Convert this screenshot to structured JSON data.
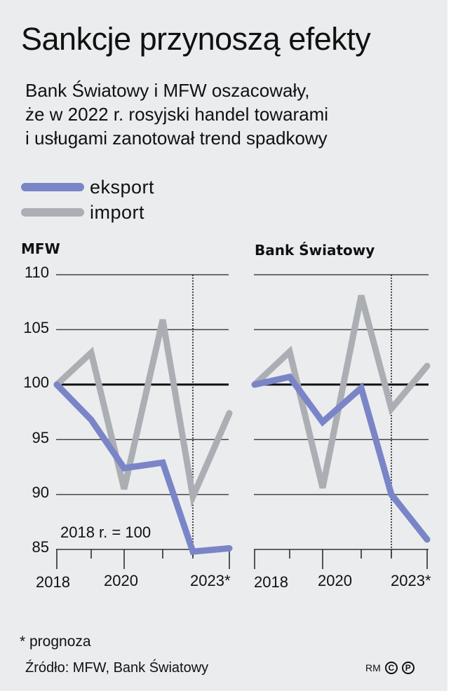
{
  "header": {
    "title": "Sankcje przynoszą efekty",
    "subtitle_lines": [
      "Bank Światowy i MFW oszacowały,",
      "że w 2022 r. rosyjski handel towarami",
      "i usługami zanotował trend spadkowy"
    ]
  },
  "legend": {
    "export_label": "eksport",
    "import_label": "import",
    "export_color": "#7a85c8",
    "import_color": "#abafb4"
  },
  "panels": {
    "left_title": "MFW",
    "right_title": "Bank Światowy",
    "y_ticks": [
      "110",
      "105",
      "100",
      "95",
      "90",
      "85"
    ],
    "x_labels": [
      "2018",
      "2020",
      "2023*"
    ],
    "base_note": "2018 r. = 100"
  },
  "footer": {
    "footnote": "* prognoza",
    "source": "Źródło: MFW, Bank Światowy",
    "credit_initials": "RM",
    "copyright_symbol": "C",
    "phonogram_symbol": "P"
  },
  "chart_data": [
    {
      "type": "line",
      "title": "MFW",
      "x": [
        2018,
        2019,
        2020,
        2021,
        2022,
        2023
      ],
      "x_tick_labels": [
        "2018",
        "2020",
        "2023*"
      ],
      "series": [
        {
          "name": "eksport",
          "color": "#7a85c8",
          "values": [
            100,
            96.8,
            92.4,
            92.9,
            84.8,
            85.1
          ]
        },
        {
          "name": "import",
          "color": "#abafb4",
          "values": [
            100,
            102.9,
            90.5,
            105.9,
            89.8,
            97.4
          ]
        }
      ],
      "ylim": [
        85,
        110
      ],
      "y_ticks": [
        85,
        90,
        95,
        100,
        105,
        110
      ],
      "reference_line": 100,
      "forecast_divider_x": 2022,
      "annotation": "2018 r. = 100",
      "xlabel": "",
      "ylabel": "",
      "grid": "horizontal"
    },
    {
      "type": "line",
      "title": "Bank Światowy",
      "x": [
        2018,
        2019,
        2020,
        2021,
        2022,
        2023
      ],
      "x_tick_labels": [
        "2018",
        "2020",
        "2023*"
      ],
      "series": [
        {
          "name": "eksport",
          "color": "#7a85c8",
          "values": [
            100,
            100.7,
            96.6,
            99.7,
            90.0,
            85.9
          ]
        },
        {
          "name": "import",
          "color": "#abafb4",
          "values": [
            100,
            103.0,
            90.6,
            108.1,
            97.8,
            101.7
          ]
        }
      ],
      "ylim": [
        85,
        110
      ],
      "y_ticks": [
        85,
        90,
        95,
        100,
        105,
        110
      ],
      "reference_line": 100,
      "forecast_divider_x": 2022,
      "xlabel": "",
      "ylabel": "",
      "grid": "horizontal"
    }
  ]
}
